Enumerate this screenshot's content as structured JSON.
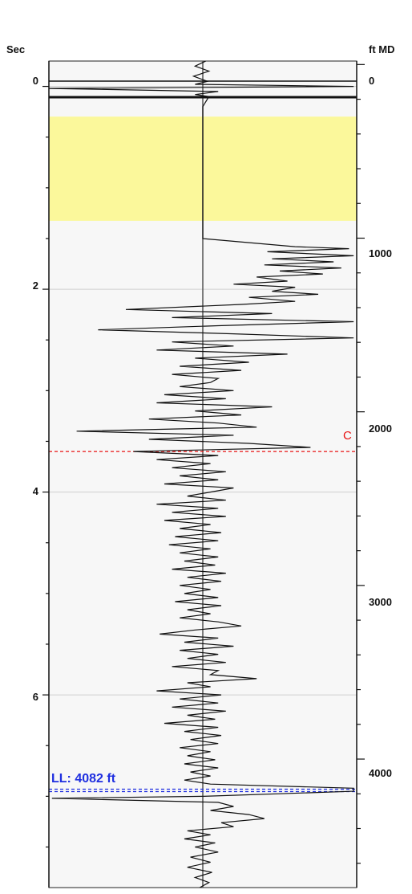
{
  "chart_data": {
    "type": "line",
    "left_axis": {
      "label": "Sec",
      "ticks": [
        "0",
        "2",
        "4",
        "6"
      ],
      "range": [
        -0.25,
        7.9
      ]
    },
    "right_axis": {
      "label": "ft MD",
      "ticks": [
        "0",
        "1000",
        "2000",
        "3000",
        "4000"
      ],
      "range": [
        -20,
        4740
      ]
    },
    "grid": true,
    "shaded_zone": {
      "depth_top": 300,
      "depth_bottom": 900,
      "color": "#fbf89b"
    },
    "markers": [
      {
        "label": "C",
        "time": 3.6,
        "color": "#e81414",
        "style": "dashed"
      },
      {
        "label": "LL: 4082 ft",
        "time": 6.93,
        "color": "#1f2fe0",
        "style": "double-dashed"
      }
    ],
    "trace_baseline": 0,
    "trace_range": [
      -1,
      1
    ],
    "series": [
      {
        "points": [
          [
            -0.25,
            0.02
          ],
          [
            -0.2,
            -0.05
          ],
          [
            -0.15,
            0.04
          ],
          [
            -0.1,
            -0.06
          ],
          [
            -0.05,
            0.03
          ],
          [
            -0.02,
            -0.05
          ],
          [
            0.0,
            0.98
          ],
          [
            0.02,
            -1.0
          ],
          [
            0.05,
            0.1
          ],
          [
            0.08,
            -0.05
          ],
          [
            0.1,
            0.04
          ],
          [
            0.15,
            0.02
          ],
          [
            0.2,
            0.0
          ],
          [
            1.5,
            0.0
          ],
          [
            1.58,
            0.6
          ],
          [
            1.6,
            0.95
          ],
          [
            1.63,
            0.42
          ],
          [
            1.67,
            0.98
          ],
          [
            1.7,
            0.45
          ],
          [
            1.73,
            0.85
          ],
          [
            1.76,
            0.4
          ],
          [
            1.79,
            0.9
          ],
          [
            1.82,
            0.5
          ],
          [
            1.85,
            0.78
          ],
          [
            1.88,
            0.35
          ],
          [
            1.92,
            0.55
          ],
          [
            1.95,
            0.2
          ],
          [
            1.98,
            0.6
          ],
          [
            2.02,
            0.45
          ],
          [
            2.05,
            0.75
          ],
          [
            2.08,
            0.3
          ],
          [
            2.12,
            0.6
          ],
          [
            2.15,
            0.25
          ],
          [
            2.2,
            -0.5
          ],
          [
            2.24,
            0.45
          ],
          [
            2.28,
            -0.2
          ],
          [
            2.32,
            0.98
          ],
          [
            2.36,
            0.1
          ],
          [
            2.4,
            -0.68
          ],
          [
            2.44,
            0.2
          ],
          [
            2.48,
            0.98
          ],
          [
            2.52,
            -0.2
          ],
          [
            2.56,
            0.2
          ],
          [
            2.6,
            -0.3
          ],
          [
            2.64,
            0.55
          ],
          [
            2.68,
            -0.05
          ],
          [
            2.72,
            0.3
          ],
          [
            2.76,
            -0.15
          ],
          [
            2.8,
            0.25
          ],
          [
            2.84,
            -0.2
          ],
          [
            2.88,
            0.1
          ],
          [
            2.92,
            0.05
          ],
          [
            2.96,
            -0.15
          ],
          [
            3.0,
            0.2
          ],
          [
            3.04,
            -0.25
          ],
          [
            3.08,
            0.15
          ],
          [
            3.12,
            -0.3
          ],
          [
            3.16,
            0.45
          ],
          [
            3.2,
            -0.05
          ],
          [
            3.24,
            0.25
          ],
          [
            3.28,
            -0.35
          ],
          [
            3.32,
            0.1
          ],
          [
            3.36,
            0.35
          ],
          [
            3.4,
            -0.82
          ],
          [
            3.44,
            0.2
          ],
          [
            3.48,
            -0.35
          ],
          [
            3.52,
            0.3
          ],
          [
            3.56,
            0.7
          ],
          [
            3.6,
            -0.45
          ],
          [
            3.64,
            0.1
          ],
          [
            3.68,
            -0.3
          ],
          [
            3.72,
            0.05
          ],
          [
            3.76,
            -0.2
          ],
          [
            3.8,
            0.15
          ],
          [
            3.84,
            -0.15
          ],
          [
            3.88,
            0.1
          ],
          [
            3.92,
            -0.25
          ],
          [
            3.96,
            0.2
          ],
          [
            4.0,
            0.05
          ],
          [
            4.04,
            -0.1
          ],
          [
            4.08,
            0.15
          ],
          [
            4.12,
            -0.3
          ],
          [
            4.16,
            0.1
          ],
          [
            4.2,
            -0.2
          ],
          [
            4.24,
            0.15
          ],
          [
            4.28,
            -0.25
          ],
          [
            4.32,
            0.05
          ],
          [
            4.36,
            -0.15
          ],
          [
            4.4,
            0.12
          ],
          [
            4.44,
            -0.18
          ],
          [
            4.48,
            0.1
          ],
          [
            4.52,
            -0.22
          ],
          [
            4.56,
            0.05
          ],
          [
            4.6,
            -0.15
          ],
          [
            4.64,
            0.1
          ],
          [
            4.68,
            -0.12
          ],
          [
            4.72,
            0.08
          ],
          [
            4.76,
            -0.2
          ],
          [
            4.8,
            0.15
          ],
          [
            4.84,
            -0.1
          ],
          [
            4.88,
            0.12
          ],
          [
            4.92,
            -0.15
          ],
          [
            4.96,
            0.05
          ],
          [
            5.0,
            -0.12
          ],
          [
            5.04,
            0.1
          ],
          [
            5.08,
            -0.18
          ],
          [
            5.12,
            0.12
          ],
          [
            5.16,
            -0.1
          ],
          [
            5.2,
            0.05
          ],
          [
            5.24,
            -0.15
          ],
          [
            5.28,
            0.1
          ],
          [
            5.32,
            0.25
          ],
          [
            5.36,
            -0.05
          ],
          [
            5.4,
            -0.28
          ],
          [
            5.44,
            0.1
          ],
          [
            5.48,
            -0.12
          ],
          [
            5.52,
            0.2
          ],
          [
            5.56,
            -0.15
          ],
          [
            5.6,
            0.1
          ],
          [
            5.64,
            -0.1
          ],
          [
            5.68,
            0.15
          ],
          [
            5.72,
            -0.2
          ],
          [
            5.76,
            0.1
          ],
          [
            5.8,
            0.05
          ],
          [
            5.84,
            0.35
          ],
          [
            5.88,
            -0.1
          ],
          [
            5.92,
            0.05
          ],
          [
            5.96,
            -0.3
          ],
          [
            6.0,
            0.12
          ],
          [
            6.04,
            -0.15
          ],
          [
            6.08,
            0.1
          ],
          [
            6.12,
            -0.2
          ],
          [
            6.16,
            0.15
          ],
          [
            6.2,
            -0.1
          ],
          [
            6.24,
            0.08
          ],
          [
            6.28,
            -0.25
          ],
          [
            6.32,
            0.1
          ],
          [
            6.36,
            -0.12
          ],
          [
            6.4,
            0.12
          ],
          [
            6.44,
            -0.08
          ],
          [
            6.48,
            0.1
          ],
          [
            6.52,
            -0.15
          ],
          [
            6.56,
            0.05
          ],
          [
            6.6,
            -0.1
          ],
          [
            6.64,
            0.08
          ],
          [
            6.68,
            -0.12
          ],
          [
            6.72,
            0.1
          ],
          [
            6.76,
            -0.08
          ],
          [
            6.8,
            0.05
          ],
          [
            6.84,
            -0.12
          ],
          [
            6.88,
            0.05
          ],
          [
            6.92,
            0.98
          ],
          [
            6.95,
            0.98
          ],
          [
            7.0,
            0.0
          ],
          [
            7.02,
            -0.98
          ],
          [
            7.06,
            0.1
          ],
          [
            7.1,
            0.2
          ],
          [
            7.14,
            0.05
          ],
          [
            7.18,
            0.3
          ],
          [
            7.22,
            0.4
          ],
          [
            7.26,
            0.12
          ],
          [
            7.3,
            0.2
          ],
          [
            7.34,
            -0.1
          ],
          [
            7.38,
            0.05
          ],
          [
            7.42,
            -0.12
          ],
          [
            7.46,
            0.08
          ],
          [
            7.5,
            -0.05
          ],
          [
            7.55,
            0.1
          ],
          [
            7.6,
            -0.08
          ],
          [
            7.65,
            0.05
          ],
          [
            7.7,
            -0.1
          ],
          [
            7.75,
            0.06
          ],
          [
            7.8,
            -0.05
          ],
          [
            7.85,
            0.04
          ],
          [
            7.9,
            -0.02
          ]
        ]
      }
    ]
  }
}
